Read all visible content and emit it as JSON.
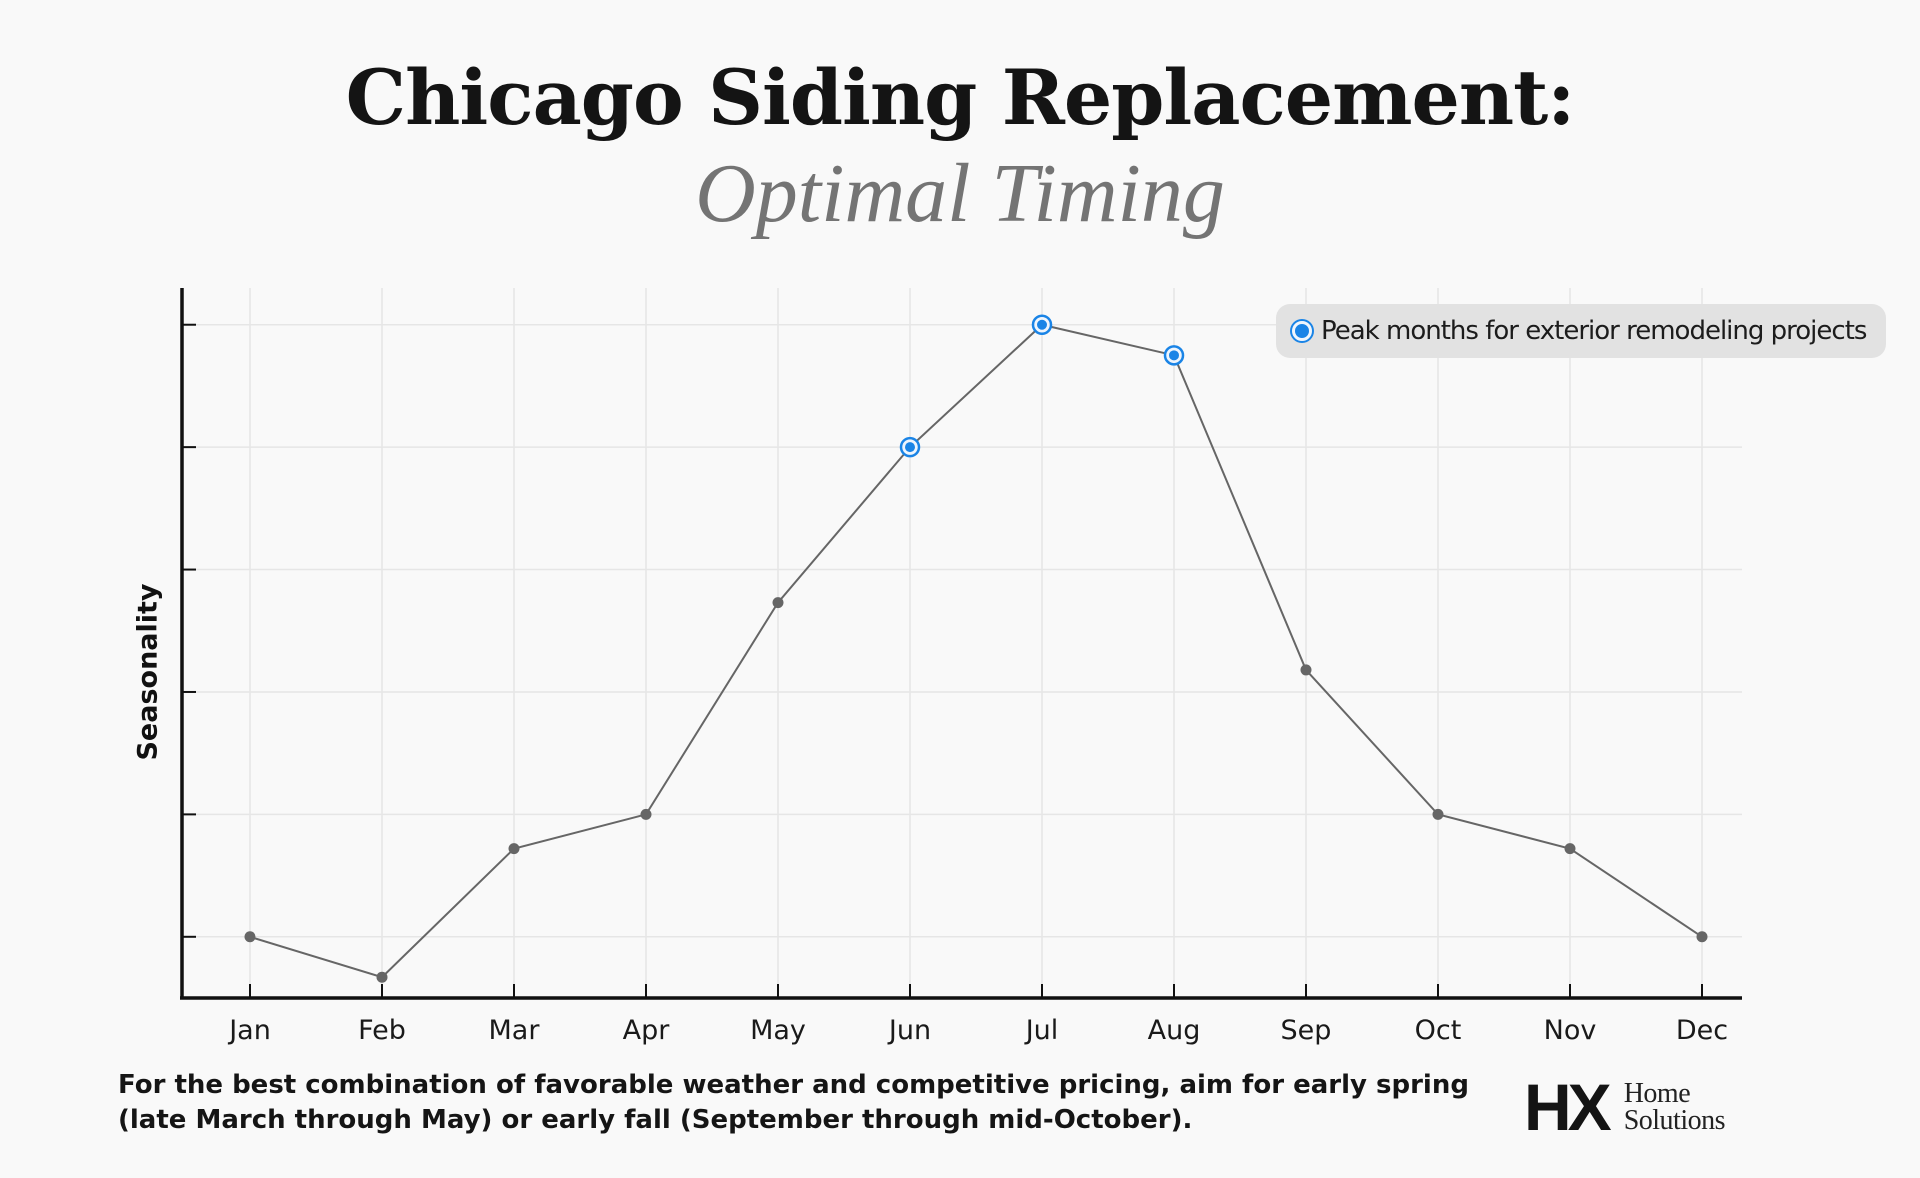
{
  "title": {
    "line1": "Chicago Siding Replacement:",
    "line2": "Optimal Timing"
  },
  "chart_data": {
    "type": "line",
    "categories": [
      "Jan",
      "Feb",
      "Mar",
      "Apr",
      "May",
      "Jun",
      "Jul",
      "Aug",
      "Sep",
      "Oct",
      "Nov",
      "Dec"
    ],
    "series": [
      {
        "values": [
          1.0,
          0.67,
          1.72,
          2.0,
          3.73,
          5.0,
          6.0,
          5.75,
          3.18,
          2.0,
          1.72,
          1.0
        ],
        "highlight": [
          "Jun",
          "Jul",
          "Aug"
        ]
      }
    ],
    "ylabel": "Seasonality",
    "xlabel": "",
    "ylim": [
      0.5,
      6.3
    ],
    "yticks": [
      1,
      2,
      3,
      4,
      5,
      6
    ],
    "grid": true,
    "legend": {
      "position": "top-right",
      "label": "Peak months for exterior remodeling projects"
    },
    "colors": {
      "line": "#666666",
      "point": "#666666",
      "highlight": "#1a84e6",
      "axis": "#111111",
      "grid": "#e6e6e6"
    }
  },
  "footnote": {
    "line1": "For the best combination of favorable weather and competitive pricing, aim for early spring",
    "line2": "(late March through May) or early fall (September through mid-October)."
  },
  "logo": {
    "mark": "HX",
    "line1": "Home",
    "line2": "Solutions"
  }
}
